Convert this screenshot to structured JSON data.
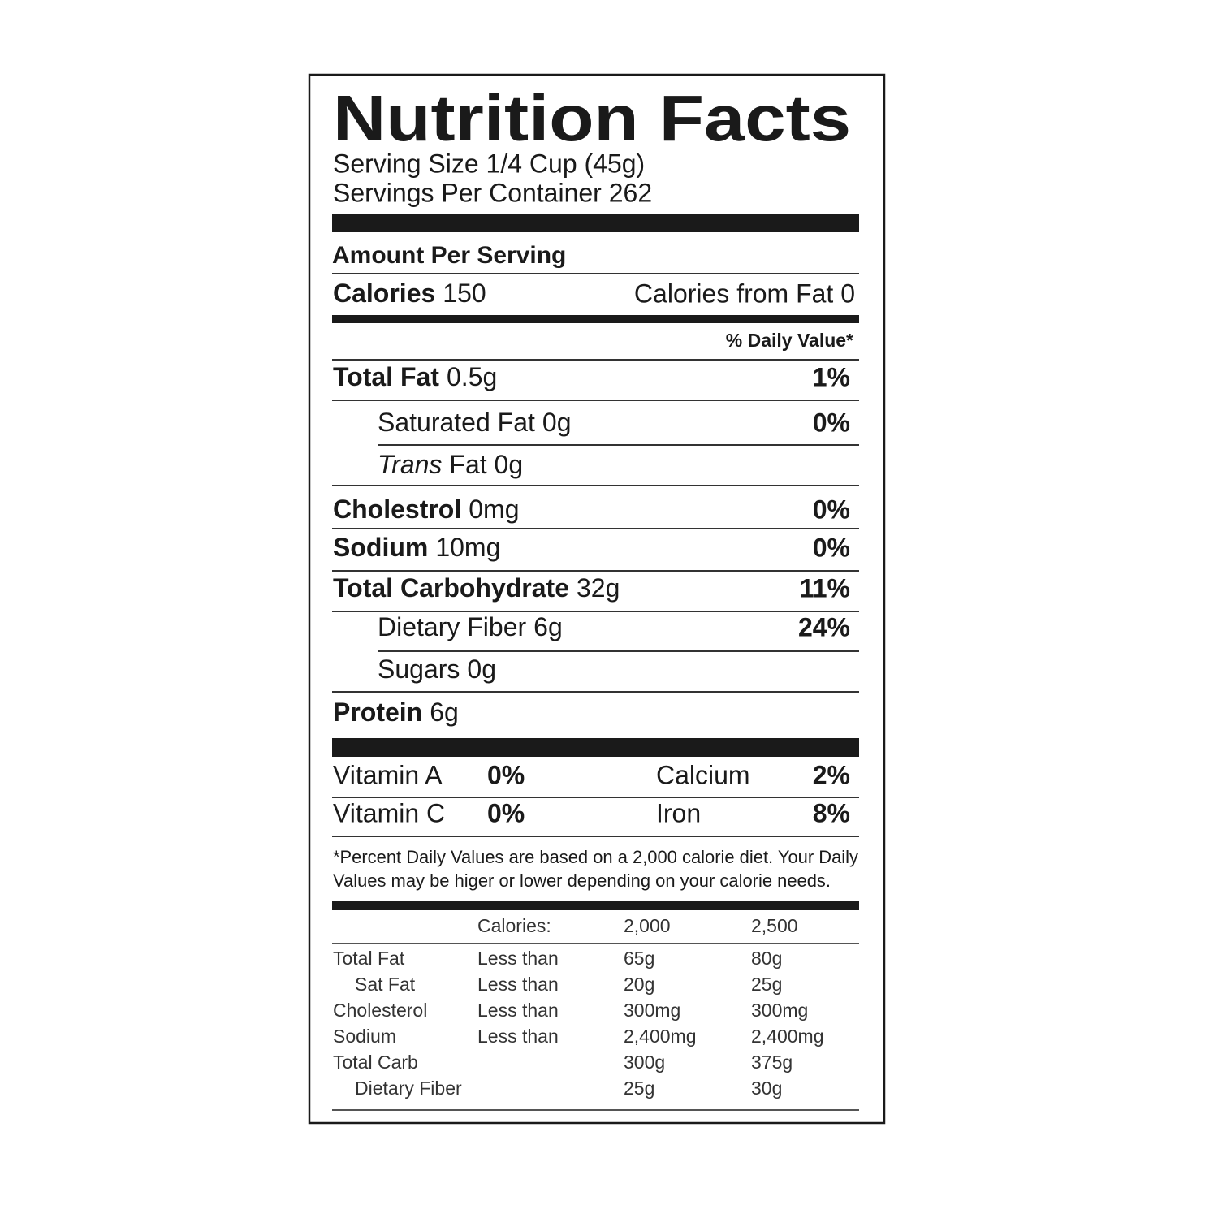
{
  "title": "Nutrition Facts",
  "serving_size": "Serving Size 1/4 Cup (45g)",
  "servings_per_container": "Servings Per Container 262",
  "amount_per_serving": "Amount Per Serving",
  "calories": {
    "label": "Calories",
    "value": "150"
  },
  "calories_from_fat": "Calories from Fat 0",
  "daily_value_header": "% Daily Value*",
  "nutrients": [
    {
      "label": "Total Fat",
      "amount": "0.5g",
      "dv": "1%",
      "bold": true,
      "indent": false
    },
    {
      "label": "Saturated Fat",
      "amount": "0g",
      "dv": "0%",
      "bold": false,
      "indent": true
    },
    {
      "label": "Trans",
      "amount": "Fat 0g",
      "bold": false,
      "italic": true,
      "indent": true
    },
    {
      "label": "Cholestrol",
      "amount": "0mg",
      "dv": "0%",
      "bold": true,
      "indent": false
    },
    {
      "label": "Sodium",
      "amount": "10mg",
      "dv": "0%",
      "bold": true,
      "indent": false
    },
    {
      "label": "Total Carbohydrate",
      "amount": "32g",
      "dv": "11%",
      "bold": true,
      "indent": false
    },
    {
      "label": "Dietary Fiber",
      "amount": "6g",
      "dv": "24%",
      "bold": false,
      "indent": true
    },
    {
      "label": "Sugars",
      "amount": "0g",
      "bold": false,
      "indent": true
    },
    {
      "label": "Protein",
      "amount": "6g",
      "bold": true,
      "indent": false
    }
  ],
  "vitamins": [
    [
      {
        "name": "Vitamin A",
        "dv": "0%"
      },
      {
        "name": "Calcium",
        "dv": "2%"
      }
    ],
    [
      {
        "name": "Vitamin C",
        "dv": "0%"
      },
      {
        "name": "Iron",
        "dv": "8%"
      }
    ]
  ],
  "footnote": [
    "*Percent Daily Values are based on a 2,000 calorie diet. Your Daily",
    "Values may be higer or lower depending on your calorie needs."
  ],
  "table": {
    "header": {
      "label": "Calories:",
      "columns": [
        "2,000",
        "2,500"
      ]
    },
    "rows": [
      {
        "nutrient": "Total Fat",
        "limit": "Less than",
        "values": [
          "65g",
          "80g"
        ],
        "indent": false
      },
      {
        "nutrient": "Sat Fat",
        "limit": "Less than",
        "values": [
          "20g",
          "25g"
        ],
        "indent": true
      },
      {
        "nutrient": "Cholesterol",
        "limit": "Less than",
        "values": [
          "300mg",
          "300mg"
        ],
        "indent": false
      },
      {
        "nutrient": "Sodium",
        "limit": "Less than",
        "values": [
          "2,400mg",
          "2,400mg"
        ],
        "indent": false
      },
      {
        "nutrient": "Total Carb",
        "values": [
          "300g",
          "375g"
        ],
        "indent": false
      },
      {
        "nutrient": "Dietary Fiber",
        "values": [
          "25g",
          "30g"
        ],
        "indent": true
      }
    ]
  }
}
